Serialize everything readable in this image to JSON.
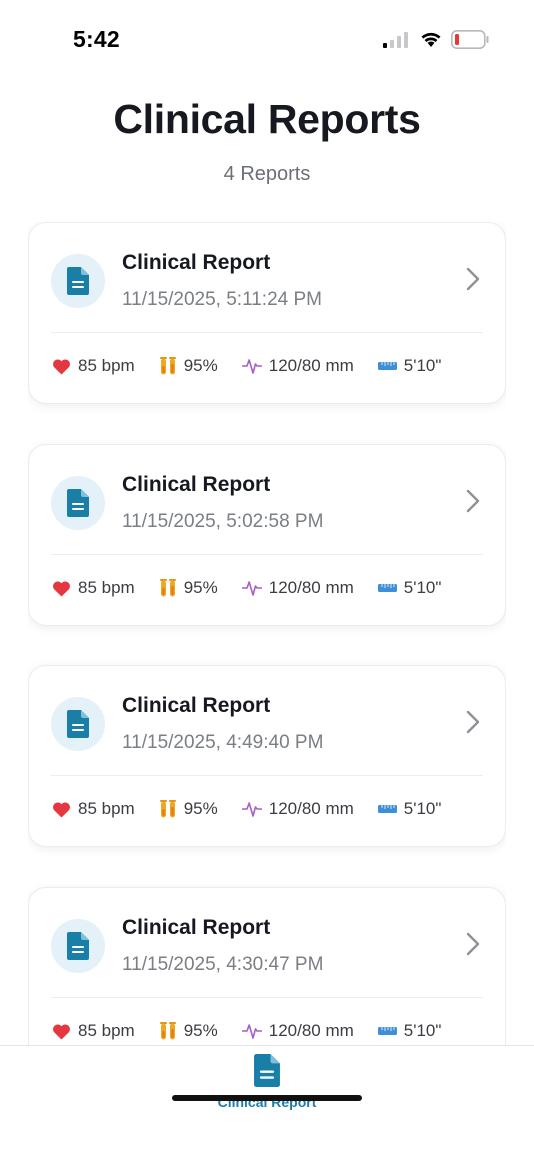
{
  "status_bar": {
    "time": "5:42"
  },
  "header": {
    "title": "Clinical Reports",
    "subtitle": "4 Reports"
  },
  "reports": [
    {
      "title": "Clinical Report",
      "date": "11/15/2025, 5:11:24 PM",
      "heart": "85 bpm",
      "oxygen": "95%",
      "pressure": "120/80 mm",
      "height": "5'10\""
    },
    {
      "title": "Clinical Report",
      "date": "11/15/2025, 5:02:58 PM",
      "heart": "85 bpm",
      "oxygen": "95%",
      "pressure": "120/80 mm",
      "height": "5'10\""
    },
    {
      "title": "Clinical Report",
      "date": "11/15/2025, 4:49:40 PM",
      "heart": "85 bpm",
      "oxygen": "95%",
      "pressure": "120/80 mm",
      "height": "5'10\""
    },
    {
      "title": "Clinical Report",
      "date": "11/15/2025, 4:30:47 PM",
      "heart": "85 bpm",
      "oxygen": "95%",
      "pressure": "120/80 mm",
      "height": "5'10\""
    }
  ],
  "tabbar": {
    "active_label": "Clinical Report"
  },
  "icons": {
    "document": "document-icon",
    "chevron": "chevron-right-icon",
    "heart": "heart-icon",
    "oxygen": "test-tubes-icon",
    "pressure": "pulse-icon",
    "height": "ruler-icon"
  },
  "colors": {
    "accent": "#1a7fa6",
    "doc_circle_bg": "#e4f1f8",
    "heart": "#e5373f",
    "oxygen": "#f0a823",
    "pressure": "#a45fc9",
    "height": "#3f8fd6",
    "battery_low": "#e53935"
  }
}
